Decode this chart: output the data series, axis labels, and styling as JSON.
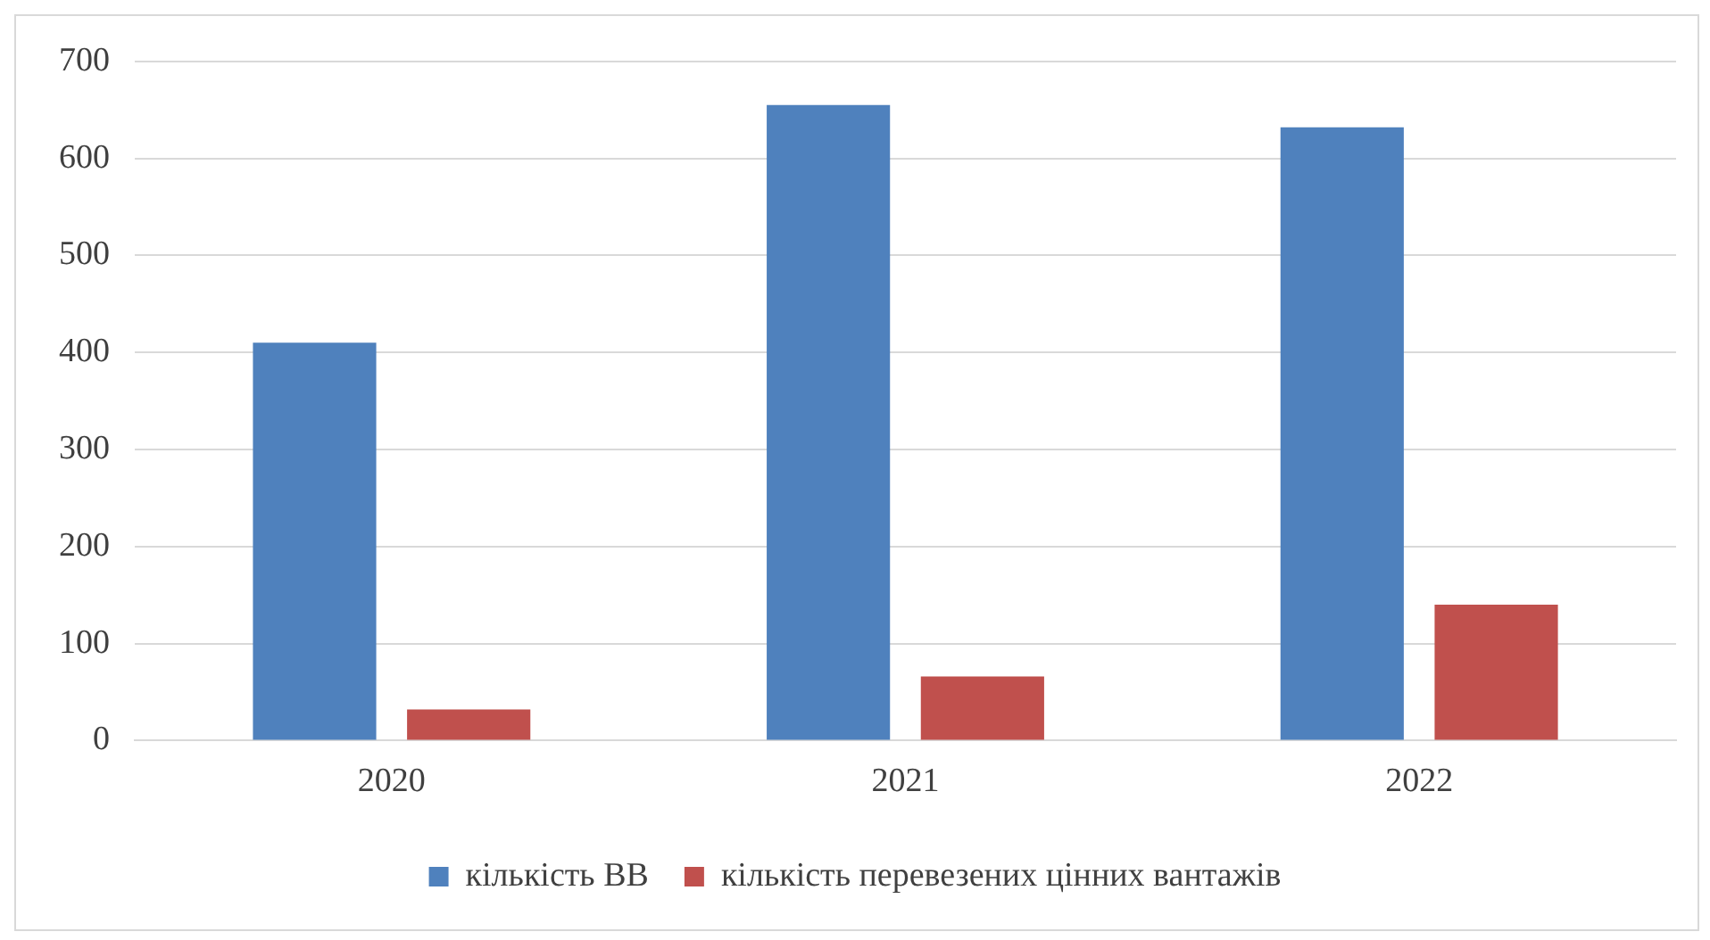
{
  "chart_data": {
    "type": "bar",
    "categories": [
      "2020",
      "2021",
      "2022"
    ],
    "series": [
      {
        "name": "кількість ВВ",
        "color": "#4f81bd",
        "values": [
          410,
          655,
          632
        ]
      },
      {
        "name": "кількість перевезених цінних вантажів",
        "color": "#c0504d",
        "values": [
          32,
          66,
          140
        ]
      }
    ],
    "ylim": [
      0,
      700
    ],
    "yticks": [
      0,
      100,
      200,
      300,
      400,
      500,
      600,
      700
    ],
    "grid": "y",
    "legend": "bottom"
  }
}
